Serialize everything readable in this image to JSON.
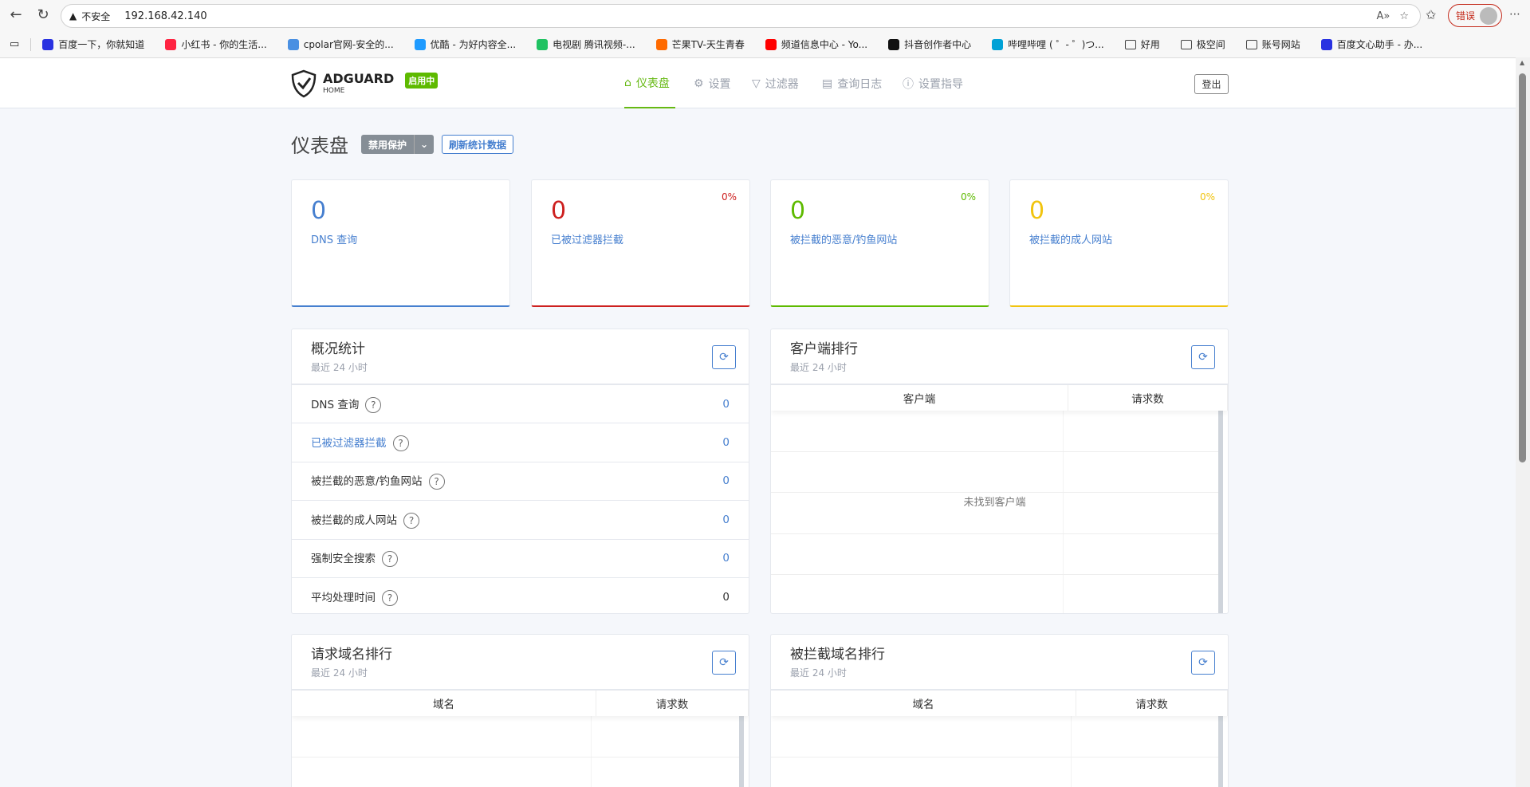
{
  "browser": {
    "url": "192.168.42.140",
    "security_label": "不安全",
    "profile_error": "错误",
    "bookmarks": [
      {
        "label": "百度一下，你就知道",
        "color": "#2932e1"
      },
      {
        "label": "小红书 - 你的生活...",
        "color": "#ff2442"
      },
      {
        "label": "cpolar官网-安全的...",
        "color": "#4a90e2"
      },
      {
        "label": "优酷 - 为好内容全...",
        "color": "#1f9bff"
      },
      {
        "label": "电视剧 腾讯视频-...",
        "color": "#20c262"
      },
      {
        "label": "芒果TV-天生青春",
        "color": "#ff6a00"
      },
      {
        "label": "频道信息中心 - Yo...",
        "color": "#ff0000"
      },
      {
        "label": "抖音创作者中心",
        "color": "#111111"
      },
      {
        "label": "哔哩哔哩 ( ゜- ゜)つ...",
        "color": "#00a1d6"
      },
      {
        "label": "好用",
        "folder": true
      },
      {
        "label": "极空间",
        "folder": true
      },
      {
        "label": "账号网站",
        "folder": true
      },
      {
        "label": "百度文心助手 - 办...",
        "color": "#2932e1"
      }
    ]
  },
  "header": {
    "logo_text": "ADGUARD",
    "logo_sub": "HOME",
    "status_badge": "启用中",
    "nav": [
      {
        "label": "仪表盘",
        "icon": "home-icon",
        "active": true
      },
      {
        "label": "设置",
        "icon": "gear-icon"
      },
      {
        "label": "过滤器",
        "icon": "filter-icon"
      },
      {
        "label": "查询日志",
        "icon": "document-icon"
      },
      {
        "label": "设置指导",
        "icon": "help-icon"
      }
    ],
    "logout": "登出"
  },
  "dashboard": {
    "title": "仪表盘",
    "disable_protection": "禁用保护",
    "refresh_stats": "刷新统计数据",
    "cards": [
      {
        "value": "0",
        "label": "DNS 查询",
        "percent": "",
        "color": "#467fcf"
      },
      {
        "value": "0",
        "label": "已被过滤器拦截",
        "percent": "0%",
        "color": "#cd201f"
      },
      {
        "value": "0",
        "label": "被拦截的恶意/钓鱼网站",
        "percent": "0%",
        "color": "#5eba00"
      },
      {
        "value": "0",
        "label": "被拦截的成人网站",
        "percent": "0%",
        "color": "#f1c40f"
      }
    ],
    "stats": {
      "title": "概况统计",
      "subtitle": "最近 24 小时",
      "rows": [
        {
          "label": "DNS 查询",
          "value": "0",
          "link": false
        },
        {
          "label": "已被过滤器拦截",
          "value": "0",
          "link": true
        },
        {
          "label": "被拦截的恶意/钓鱼网站",
          "value": "0",
          "link": false
        },
        {
          "label": "被拦截的成人网站",
          "value": "0",
          "link": false
        },
        {
          "label": "强制安全搜索",
          "value": "0",
          "link": false
        },
        {
          "label": "平均处理时间",
          "value": "0",
          "link": false
        }
      ]
    },
    "clients": {
      "title": "客户端排行",
      "subtitle": "最近 24 小时",
      "col1": "客户端",
      "col2": "请求数",
      "empty": "未找到客户端"
    },
    "queried": {
      "title": "请求域名排行",
      "subtitle": "最近 24 小时",
      "col1": "域名",
      "col2": "请求数"
    },
    "blocked": {
      "title": "被拦截域名排行",
      "subtitle": "最近 24 小时",
      "col1": "域名",
      "col2": "请求数"
    }
  }
}
